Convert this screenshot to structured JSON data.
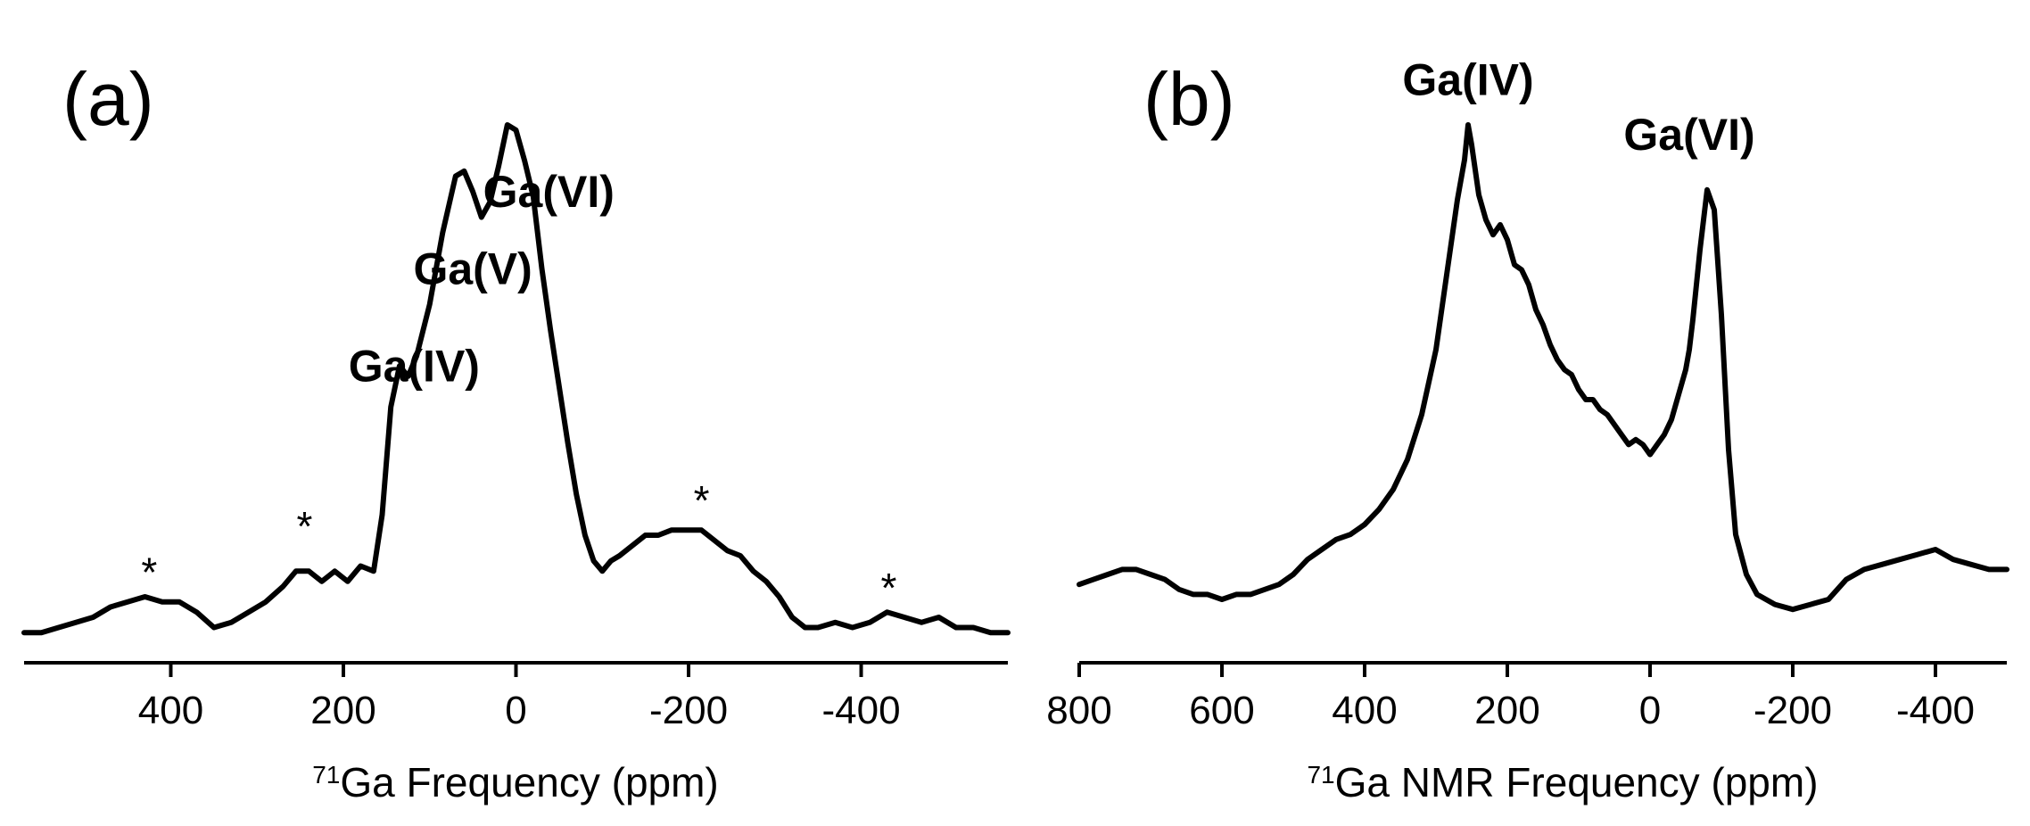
{
  "chart_data": [
    {
      "type": "line",
      "panel_label": "(a)",
      "xlabel_sup": "71",
      "xlabel": "Ga Frequency (ppm)",
      "ylabel": "",
      "xlim": [
        570,
        -570
      ],
      "ylim": [
        0,
        1.0
      ],
      "x_reversed": true,
      "grid": false,
      "xticks": [
        400,
        200,
        0,
        -200,
        -400
      ],
      "xtick_labels": [
        "400",
        "200",
        "0",
        "-200",
        "-400"
      ],
      "annotations": [
        {
          "text": "Ga(IV)",
          "x": 118,
          "y": 0.5
        },
        {
          "text": "Ga(V)",
          "x": 50,
          "y": 0.69
        },
        {
          "text": "Ga(VI)",
          "x": -38,
          "y": 0.84
        },
        {
          "text": "*",
          "x": 425,
          "y": 0.1
        },
        {
          "text": "*",
          "x": 245,
          "y": 0.19
        },
        {
          "text": "*",
          "x": -215,
          "y": 0.24
        },
        {
          "text": "*",
          "x": -432,
          "y": 0.07
        }
      ],
      "series": [
        {
          "x": [
            570,
            550,
            530,
            510,
            490,
            470,
            450,
            430,
            410,
            390,
            370,
            350,
            330,
            310,
            290,
            270,
            255,
            240,
            225,
            210,
            195,
            180,
            165,
            155,
            145,
            135,
            125,
            115,
            100,
            85,
            70,
            60,
            50,
            40,
            30,
            20,
            10,
            0,
            -10,
            -20,
            -30,
            -40,
            -50,
            -60,
            -70,
            -80,
            -90,
            -100,
            -110,
            -120,
            -135,
            -150,
            -165,
            -180,
            -200,
            -215,
            -230,
            -245,
            -260,
            -275,
            -290,
            -305,
            -320,
            -335,
            -350,
            -370,
            -390,
            -410,
            -430,
            -450,
            -470,
            -490,
            -510,
            -530,
            -550,
            -570
          ],
          "y": [
            0.01,
            0.01,
            0.02,
            0.03,
            0.04,
            0.06,
            0.07,
            0.08,
            0.07,
            0.07,
            0.05,
            0.02,
            0.03,
            0.05,
            0.07,
            0.1,
            0.13,
            0.13,
            0.11,
            0.13,
            0.11,
            0.14,
            0.13,
            0.24,
            0.45,
            0.53,
            0.51,
            0.55,
            0.65,
            0.79,
            0.9,
            0.91,
            0.87,
            0.82,
            0.85,
            0.92,
            1.0,
            0.99,
            0.93,
            0.86,
            0.72,
            0.6,
            0.49,
            0.38,
            0.28,
            0.2,
            0.15,
            0.13,
            0.15,
            0.16,
            0.18,
            0.2,
            0.2,
            0.21,
            0.21,
            0.21,
            0.19,
            0.17,
            0.16,
            0.13,
            0.11,
            0.08,
            0.04,
            0.02,
            0.02,
            0.03,
            0.02,
            0.03,
            0.05,
            0.04,
            0.03,
            0.04,
            0.02,
            0.02,
            0.01,
            0.01
          ]
        }
      ]
    },
    {
      "type": "line",
      "panel_label": "(b)",
      "xlabel_sup": "71",
      "xlabel": "Ga NMR Frequency (ppm)",
      "ylabel": "",
      "xlim": [
        800,
        -500
      ],
      "ylim": [
        0,
        1.0
      ],
      "x_reversed": true,
      "grid": false,
      "xticks": [
        800,
        600,
        400,
        200,
        0,
        -200,
        -400
      ],
      "xtick_labels": [
        "800",
        "600",
        "400",
        "200",
        "0",
        "-200",
        "-400"
      ],
      "annotations": [
        {
          "text": "Ga(IV)",
          "x": 255,
          "y": 1.06
        },
        {
          "text": "Ga(VI)",
          "x": -55,
          "y": 0.95
        }
      ],
      "series": [
        {
          "x": [
            800,
            780,
            760,
            740,
            720,
            700,
            680,
            660,
            640,
            620,
            600,
            580,
            560,
            540,
            520,
            500,
            480,
            460,
            440,
            420,
            400,
            380,
            360,
            340,
            320,
            300,
            285,
            270,
            260,
            255,
            250,
            240,
            230,
            220,
            210,
            200,
            190,
            180,
            170,
            160,
            150,
            140,
            130,
            120,
            110,
            100,
            90,
            80,
            70,
            60,
            50,
            40,
            30,
            20,
            10,
            0,
            -10,
            -20,
            -30,
            -40,
            -50,
            -55,
            -60,
            -70,
            -80,
            -90,
            -100,
            -110,
            -120,
            -135,
            -150,
            -175,
            -200,
            -225,
            -250,
            -275,
            -300,
            -325,
            -350,
            -375,
            -400,
            -425,
            -450,
            -475,
            -500
          ],
          "y": [
            0.08,
            0.09,
            0.1,
            0.11,
            0.11,
            0.1,
            0.09,
            0.07,
            0.06,
            0.06,
            0.05,
            0.06,
            0.06,
            0.07,
            0.08,
            0.1,
            0.13,
            0.15,
            0.17,
            0.18,
            0.2,
            0.23,
            0.27,
            0.33,
            0.42,
            0.55,
            0.7,
            0.85,
            0.93,
            1.0,
            0.96,
            0.86,
            0.81,
            0.78,
            0.8,
            0.77,
            0.72,
            0.71,
            0.68,
            0.63,
            0.6,
            0.56,
            0.53,
            0.51,
            0.5,
            0.47,
            0.45,
            0.45,
            0.43,
            0.42,
            0.4,
            0.38,
            0.36,
            0.37,
            0.36,
            0.34,
            0.36,
            0.38,
            0.41,
            0.46,
            0.51,
            0.55,
            0.61,
            0.75,
            0.87,
            0.83,
            0.62,
            0.35,
            0.18,
            0.1,
            0.06,
            0.04,
            0.03,
            0.04,
            0.05,
            0.09,
            0.11,
            0.12,
            0.13,
            0.14,
            0.15,
            0.13,
            0.12,
            0.11,
            0.11
          ]
        }
      ]
    }
  ]
}
